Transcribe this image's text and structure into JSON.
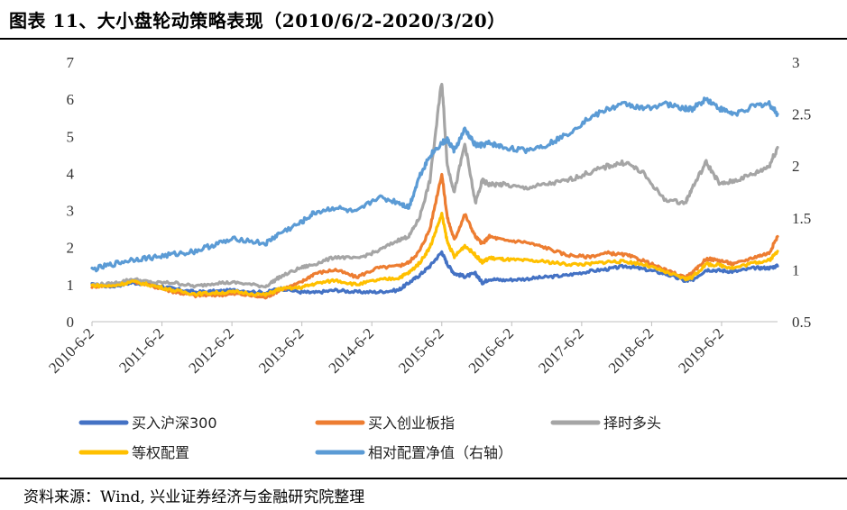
{
  "title": "图表 11、大小盘轮动策略表现（2010/6/2-2020/3/20）",
  "source": "资料来源：Wind, 兴业证券经济与金融研究院整理",
  "chart_data": {
    "type": "line",
    "xlabel": "",
    "ylabel_left": "",
    "ylabel_right": "",
    "x_ticks": [
      "2010-6-2",
      "2011-6-2",
      "2012-6-2",
      "2013-6-2",
      "2014-6-2",
      "2015-6-2",
      "2016-6-2",
      "2017-6-2",
      "2018-6-2",
      "2019-6-2"
    ],
    "x_range": [
      2010.42,
      2020.22
    ],
    "y_left_range": [
      0,
      7
    ],
    "y_left_ticks": [
      "0",
      "1",
      "2",
      "3",
      "4",
      "5",
      "6",
      "7"
    ],
    "y_right_range": [
      0.5,
      3
    ],
    "y_right_ticks": [
      "0.5",
      "1",
      "1.5",
      "2",
      "2.5",
      "3"
    ],
    "grid": false,
    "legend_position": "bottom",
    "series": [
      {
        "name": "买入沪深300",
        "color": "#4472C4",
        "axis": "left",
        "x": [
          2010.42,
          2010.7,
          2011.0,
          2011.3,
          2011.6,
          2011.9,
          2012.2,
          2012.5,
          2012.9,
          2013.1,
          2013.4,
          2013.6,
          2013.9,
          2014.2,
          2014.5,
          2014.8,
          2014.95,
          2015.1,
          2015.25,
          2015.42,
          2015.5,
          2015.6,
          2015.75,
          2015.9,
          2016.0,
          2016.1,
          2016.3,
          2016.6,
          2016.9,
          2017.2,
          2017.5,
          2017.8,
          2018.05,
          2018.3,
          2018.6,
          2018.9,
          2019.0,
          2019.2,
          2019.4,
          2019.6,
          2019.9,
          2020.1,
          2020.22
        ],
        "y": [
          1.0,
          0.95,
          1.05,
          1.0,
          0.88,
          0.8,
          0.82,
          0.85,
          0.78,
          0.9,
          0.8,
          0.78,
          0.85,
          0.8,
          0.8,
          0.85,
          1.05,
          1.25,
          1.5,
          1.88,
          1.55,
          1.3,
          1.22,
          1.3,
          1.05,
          1.15,
          1.12,
          1.15,
          1.2,
          1.25,
          1.35,
          1.42,
          1.5,
          1.42,
          1.3,
          1.1,
          1.12,
          1.4,
          1.38,
          1.35,
          1.45,
          1.45,
          1.5
        ]
      },
      {
        "name": "买入创业板指",
        "color": "#ED7D31",
        "axis": "left",
        "x": [
          2010.42,
          2010.7,
          2011.0,
          2011.3,
          2011.6,
          2011.9,
          2012.2,
          2012.5,
          2012.9,
          2013.1,
          2013.4,
          2013.6,
          2013.9,
          2014.2,
          2014.5,
          2014.8,
          2014.95,
          2015.1,
          2015.25,
          2015.42,
          2015.5,
          2015.6,
          2015.75,
          2015.9,
          2016.0,
          2016.1,
          2016.3,
          2016.6,
          2016.9,
          2017.2,
          2017.5,
          2017.8,
          2018.05,
          2018.3,
          2018.6,
          2018.9,
          2019.0,
          2019.2,
          2019.4,
          2019.6,
          2019.9,
          2020.1,
          2020.22
        ],
        "y": [
          0.95,
          0.98,
          1.1,
          0.95,
          0.8,
          0.7,
          0.72,
          0.75,
          0.65,
          0.85,
          1.05,
          1.3,
          1.4,
          1.2,
          1.45,
          1.5,
          1.6,
          1.9,
          2.5,
          4.0,
          2.8,
          2.2,
          2.9,
          2.3,
          2.1,
          2.3,
          2.2,
          2.15,
          2.0,
          1.8,
          1.75,
          1.85,
          1.8,
          1.65,
          1.4,
          1.2,
          1.3,
          1.7,
          1.65,
          1.55,
          1.75,
          1.85,
          2.3
        ]
      },
      {
        "name": "择时多头",
        "color": "#A5A5A5",
        "axis": "left",
        "x": [
          2010.42,
          2010.7,
          2011.0,
          2011.3,
          2011.6,
          2011.9,
          2012.2,
          2012.5,
          2012.9,
          2013.1,
          2013.4,
          2013.6,
          2013.9,
          2014.2,
          2014.5,
          2014.8,
          2014.95,
          2015.1,
          2015.25,
          2015.42,
          2015.5,
          2015.6,
          2015.75,
          2015.9,
          2016.0,
          2016.1,
          2016.3,
          2016.6,
          2016.9,
          2017.2,
          2017.5,
          2017.8,
          2018.05,
          2018.3,
          2018.6,
          2018.9,
          2019.0,
          2019.2,
          2019.4,
          2019.6,
          2019.9,
          2020.1,
          2020.22
        ],
        "y": [
          1.0,
          1.02,
          1.15,
          1.05,
          1.05,
          0.95,
          1.05,
          1.05,
          0.95,
          1.2,
          1.45,
          1.55,
          1.75,
          1.7,
          1.9,
          2.2,
          2.3,
          2.8,
          3.8,
          6.5,
          4.2,
          3.5,
          4.8,
          3.2,
          3.8,
          3.7,
          3.7,
          3.6,
          3.7,
          3.8,
          4.0,
          4.2,
          4.3,
          4.0,
          3.3,
          3.2,
          3.6,
          4.3,
          3.7,
          3.8,
          4.0,
          4.2,
          4.7
        ]
      },
      {
        "name": "等权配置",
        "color": "#FFC000",
        "axis": "left",
        "x": [
          2010.42,
          2010.7,
          2011.0,
          2011.3,
          2011.6,
          2011.9,
          2012.2,
          2012.5,
          2012.9,
          2013.1,
          2013.4,
          2013.6,
          2013.9,
          2014.2,
          2014.5,
          2014.8,
          2014.95,
          2015.1,
          2015.25,
          2015.42,
          2015.5,
          2015.6,
          2015.75,
          2015.9,
          2016.0,
          2016.1,
          2016.3,
          2016.6,
          2016.9,
          2017.2,
          2017.5,
          2017.8,
          2018.05,
          2018.3,
          2018.6,
          2018.9,
          2019.0,
          2019.2,
          2019.4,
          2019.6,
          2019.9,
          2020.1,
          2020.22
        ],
        "y": [
          0.98,
          0.96,
          1.08,
          0.97,
          0.84,
          0.75,
          0.78,
          0.8,
          0.72,
          0.88,
          0.92,
          1.02,
          1.12,
          1.0,
          1.12,
          1.18,
          1.32,
          1.58,
          2.0,
          2.9,
          2.15,
          1.75,
          2.05,
          1.8,
          1.6,
          1.72,
          1.68,
          1.65,
          1.62,
          1.55,
          1.55,
          1.62,
          1.62,
          1.55,
          1.35,
          1.15,
          1.2,
          1.55,
          1.52,
          1.45,
          1.6,
          1.65,
          1.9
        ]
      },
      {
        "name": "相对配置净值（右轴）",
        "color": "#5B9BD5",
        "axis": "right",
        "x": [
          2010.42,
          2010.7,
          2011.0,
          2011.3,
          2011.6,
          2011.9,
          2012.2,
          2012.5,
          2012.9,
          2013.1,
          2013.4,
          2013.6,
          2013.9,
          2014.2,
          2014.5,
          2014.8,
          2014.95,
          2015.1,
          2015.25,
          2015.42,
          2015.5,
          2015.6,
          2015.75,
          2015.9,
          2016.0,
          2016.1,
          2016.3,
          2016.6,
          2016.9,
          2017.2,
          2017.5,
          2017.8,
          2018.05,
          2018.3,
          2018.6,
          2018.9,
          2019.0,
          2019.2,
          2019.4,
          2019.6,
          2019.9,
          2020.1,
          2020.22
        ],
        "y": [
          1.0,
          1.05,
          1.1,
          1.12,
          1.15,
          1.18,
          1.25,
          1.3,
          1.25,
          1.35,
          1.45,
          1.55,
          1.6,
          1.55,
          1.7,
          1.65,
          1.6,
          1.9,
          2.1,
          2.22,
          2.25,
          2.15,
          2.35,
          2.2,
          2.2,
          2.22,
          2.18,
          2.15,
          2.2,
          2.3,
          2.45,
          2.55,
          2.6,
          2.55,
          2.6,
          2.55,
          2.55,
          2.65,
          2.55,
          2.5,
          2.58,
          2.6,
          2.5
        ]
      }
    ]
  }
}
